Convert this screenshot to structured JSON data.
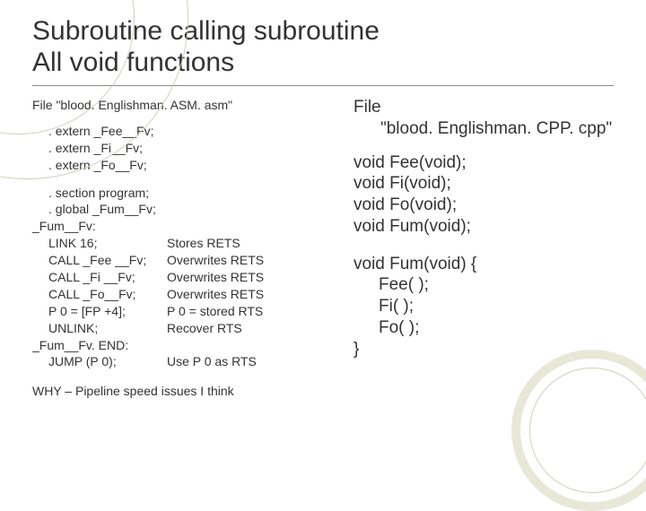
{
  "title": {
    "line1": "Subroutine calling subroutine",
    "line2": "All void functions"
  },
  "left": {
    "fileLine": "File \"blood. Englishman. ASM. asm\"",
    "externs": [
      ". extern  _Fee__Fv;",
      ". extern _Fi__Fv;",
      ". extern _Fo__Fv;"
    ],
    "sectionLines": [
      ". section program;",
      ". global _Fum__Fv;"
    ],
    "label1": "_Fum__Fv:",
    "asm": [
      {
        "l": "LINK 16;",
        "r": "Stores RETS"
      },
      {
        "l": "CALL _Fee __Fv;",
        "r": "Overwrites RETS"
      },
      {
        "l": "CALL _Fi __Fv;",
        "r": "Overwrites RETS"
      },
      {
        "l": "CALL _Fo__Fv;",
        "r": "Overwrites RETS"
      },
      {
        "l": "P 0 = [FP +4];",
        "r": "P 0 = stored RTS"
      },
      {
        "l": "UNLINK;",
        "r": "Recover RTS"
      }
    ],
    "label2": "_Fum__Fv. END:",
    "asmTail": {
      "l": "JUMP (P 0);",
      "r": "Use P 0 as RTS"
    },
    "why": "WHY – Pipeline speed issues I think"
  },
  "right": {
    "fileLine1": "File",
    "fileLine2": "\"blood. Englishman. CPP. cpp\"",
    "decls": [
      "void Fee(void);",
      "void Fi(void);",
      "void Fo(void);",
      "void Fum(void);"
    ],
    "bodyOpen": "void Fum(void) {",
    "bodyLines": [
      "Fee( );",
      "Fi( );",
      "Fo( );"
    ],
    "bodyClose": "}"
  }
}
